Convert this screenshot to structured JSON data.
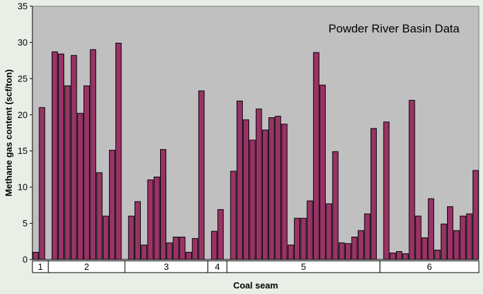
{
  "chart_data": {
    "type": "bar",
    "title": "Powder River Basin Data",
    "xlabel": "Coal seam",
    "ylabel": "Methane gas content (scf/ton)",
    "ylim": [
      0,
      35
    ],
    "yticks": [
      0,
      5,
      10,
      15,
      20,
      25,
      30,
      35
    ],
    "grid": false,
    "legend": "none",
    "colors": {
      "plot_background": "#c0c0c0",
      "bar_fill": "#993366",
      "bar_stroke": "#000000",
      "page_background": "#e9efe6"
    },
    "groups": [
      {
        "label": "1",
        "values": [
          1.0,
          21.0
        ]
      },
      {
        "label": "2",
        "values": [
          28.7,
          28.4,
          24.0,
          28.2,
          20.2,
          24.0,
          29.0,
          12.0,
          6.0,
          15.1,
          29.9
        ]
      },
      {
        "label": "3",
        "values": [
          6.0,
          8.0,
          2.0,
          11.0,
          11.4,
          15.2,
          2.3,
          3.1,
          3.1,
          1.0,
          2.9,
          23.3
        ]
      },
      {
        "label": "4",
        "values": [
          3.9,
          6.9
        ]
      },
      {
        "label": "5",
        "values": [
          12.2,
          21.9,
          19.3,
          16.5,
          20.8,
          17.9,
          19.6,
          19.8,
          18.7,
          2.0,
          5.7,
          5.7,
          8.1,
          28.6,
          24.1,
          7.7,
          14.9,
          2.3,
          2.2,
          3.1,
          4.0,
          6.3,
          18.1
        ]
      },
      {
        "label": "6",
        "values": [
          19.0,
          0.9,
          1.1,
          0.8,
          22.0,
          6.0,
          3.0,
          8.4,
          1.3,
          4.9,
          7.3,
          4.0,
          6.0,
          6.3,
          12.3
        ]
      }
    ]
  }
}
